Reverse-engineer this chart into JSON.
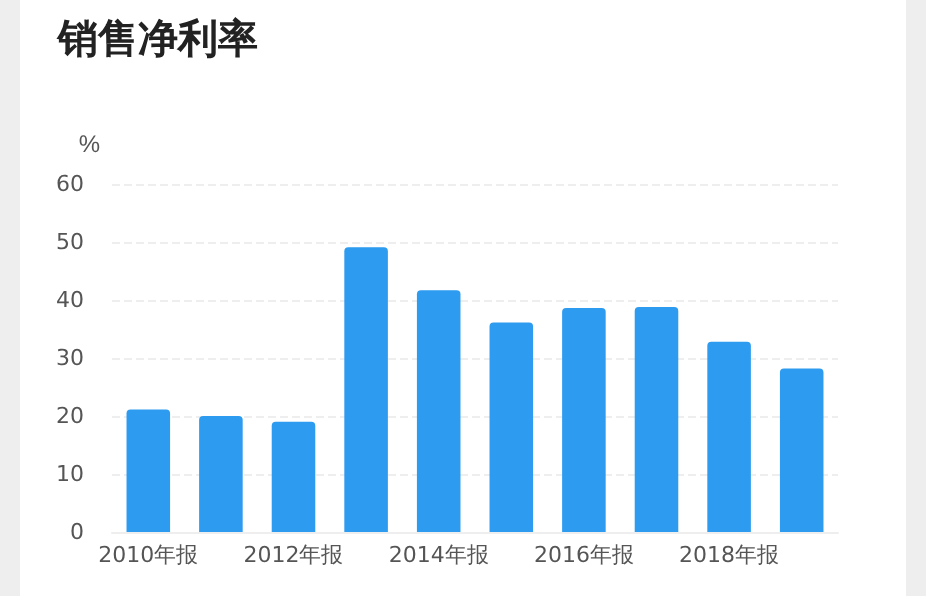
{
  "chart_data": {
    "type": "bar",
    "title": "销售净利率",
    "ylabel": "%",
    "categories": [
      "2010年报",
      null,
      "2012年报",
      null,
      "2014年报",
      null,
      "2016年报",
      null,
      "2018年报",
      null
    ],
    "series": [
      {
        "color": "#2d9bf0",
        "values": [
          21.1,
          20.0,
          19.0,
          49.1,
          41.7,
          36.1,
          38.6,
          38.8,
          32.8,
          28.2
        ]
      }
    ],
    "ylim": [
      0,
      60
    ],
    "yticks": [
      0,
      10,
      20,
      30,
      40,
      50,
      60
    ],
    "grid": "y"
  }
}
